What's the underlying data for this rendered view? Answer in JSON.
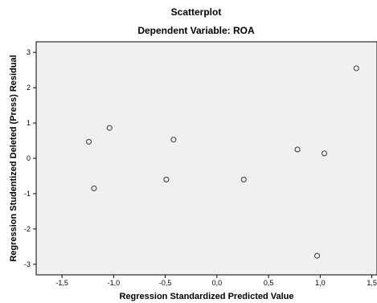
{
  "chart_data": {
    "type": "scatter",
    "title": "Scatterplot",
    "subtitle": "Dependent Variable: ROA",
    "xlabel": "Regression Standardized Predicted Value",
    "ylabel": "Regression Studentized Deleted (Press) Residual",
    "xlim": [
      -1.75,
      1.55
    ],
    "ylim": [
      -3.3,
      3.3
    ],
    "xticks": [
      -1.5,
      -1.0,
      -0.5,
      0.0,
      0.5,
      1.0,
      1.5
    ],
    "xtick_labels": [
      "-1,5",
      "-1,0",
      "-0,5",
      "0,0",
      "0,5",
      "1,0",
      "1,5"
    ],
    "yticks": [
      3,
      2,
      1,
      0,
      -1,
      -2,
      -3
    ],
    "ytick_labels": [
      "3",
      "2",
      "1",
      "0",
      "-1",
      "-2",
      "-3"
    ],
    "grid": false,
    "colors": {
      "plot_background": "#f0f0f0",
      "marker_stroke": "#333333",
      "frame": "#000000"
    },
    "points": [
      {
        "x": -1.24,
        "y": 0.47
      },
      {
        "x": -1.04,
        "y": 0.86
      },
      {
        "x": -1.19,
        "y": -0.85
      },
      {
        "x": -0.42,
        "y": 0.53
      },
      {
        "x": -0.49,
        "y": -0.6
      },
      {
        "x": 0.26,
        "y": -0.6
      },
      {
        "x": 0.78,
        "y": 0.25
      },
      {
        "x": 1.04,
        "y": 0.14
      },
      {
        "x": 1.35,
        "y": 2.55
      },
      {
        "x": 0.97,
        "y": -2.76
      }
    ]
  }
}
